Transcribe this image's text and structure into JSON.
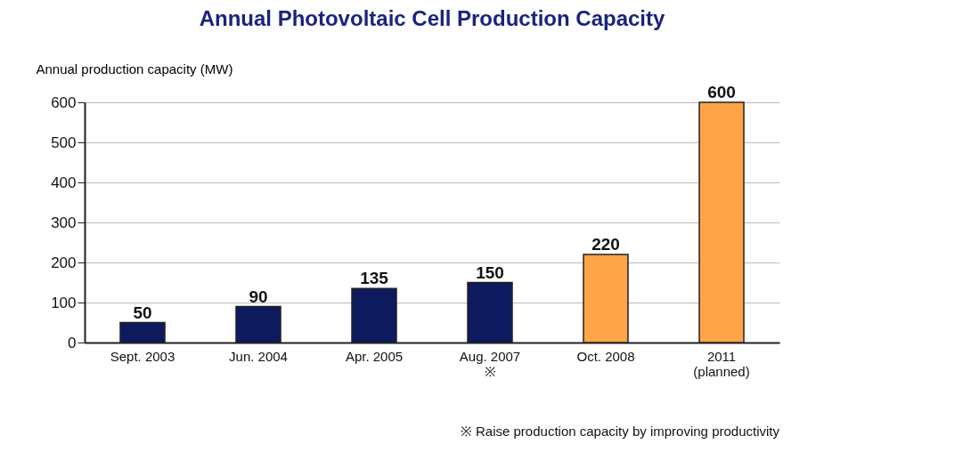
{
  "chart_data": {
    "type": "bar",
    "title": "Annual Photovoltaic Cell Production Capacity",
    "ylabel": "Annual production capacity (MW)",
    "categories": [
      "Sept. 2003",
      "Jun. 2004",
      "Apr. 2005",
      "Aug. 2007\n※",
      "Oct. 2008",
      "2011\n(planned)"
    ],
    "values": [
      50,
      90,
      135,
      150,
      220,
      600
    ],
    "colors": [
      "#0d1a5e",
      "#0d1a5e",
      "#0d1a5e",
      "#0d1a5e",
      "#ffa447",
      "#ffa447"
    ],
    "ylim": [
      0,
      600
    ],
    "yticks": [
      0,
      100,
      200,
      300,
      400,
      500,
      600
    ],
    "grid": "y",
    "data_labels": true,
    "annotations": [
      "※ Raise production capacity by improving productivity"
    ]
  }
}
